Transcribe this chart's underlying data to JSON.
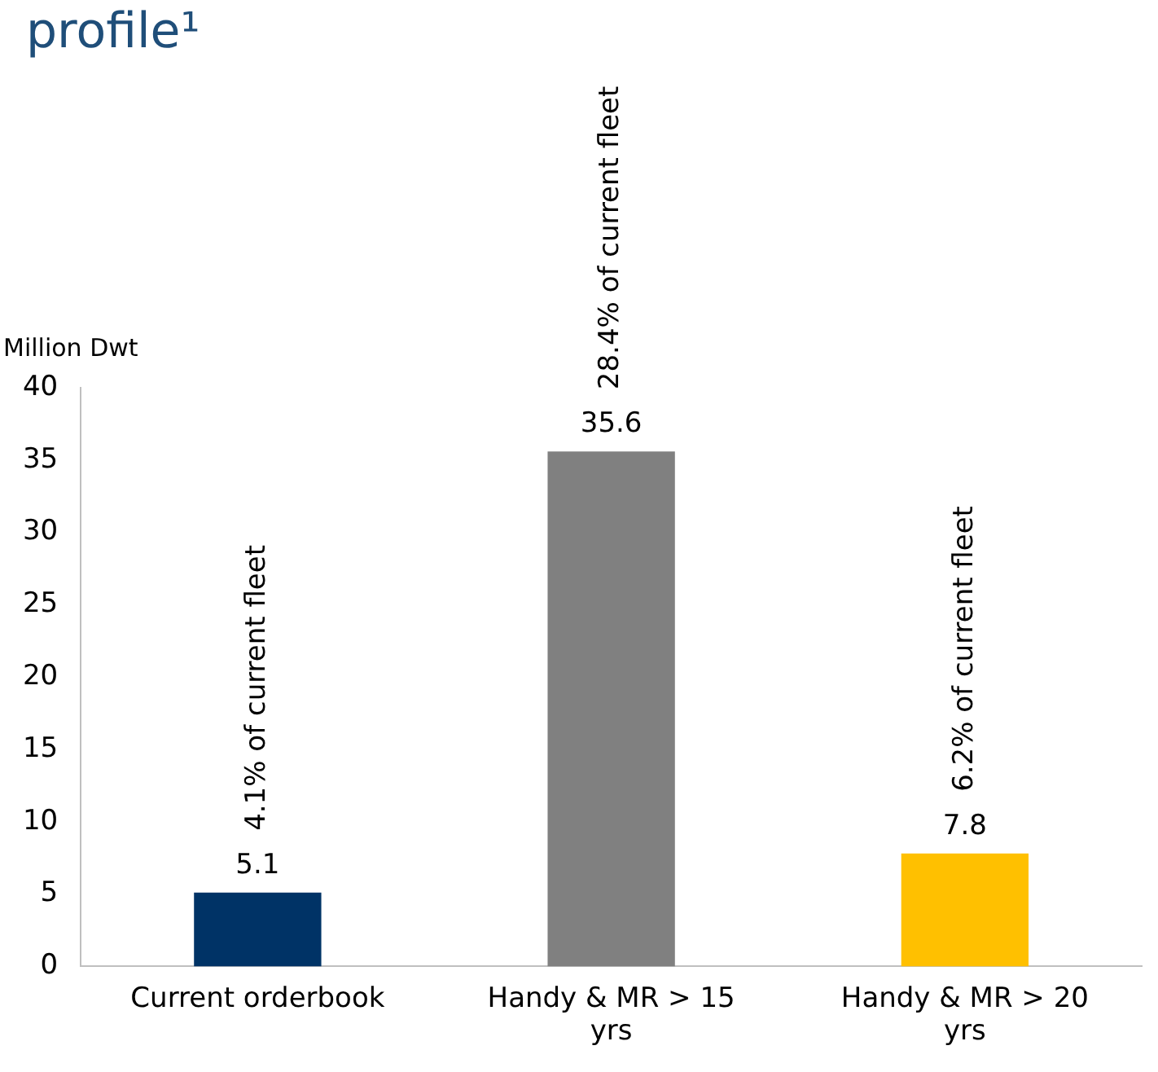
{
  "chart_data": {
    "type": "bar",
    "title": "profile¹",
    "ylabel": "Million Dwt",
    "categories": [
      "Current orderbook",
      "Handy & MR > 15 yrs",
      "Handy & MR > 20 yrs"
    ],
    "values": [
      5.1,
      35.6,
      7.8
    ],
    "colors": [
      "#003366",
      "#808080",
      "#ffc000"
    ],
    "ylim": [
      0,
      40
    ],
    "yticks": [
      0,
      5,
      10,
      15,
      20,
      25,
      30,
      35,
      40
    ],
    "grid": false,
    "data_labels": true,
    "annotations": [
      {
        "text": "4.1% of current fleet",
        "x": "Current orderbook",
        "y": 5.1
      },
      {
        "text": "28.4% of current fleet",
        "x": "Handy & MR > 15 yrs",
        "y": 35.6
      },
      {
        "text": "6.2% of current fleet",
        "x": "Handy & MR > 20 yrs",
        "y": 7.8
      }
    ]
  }
}
